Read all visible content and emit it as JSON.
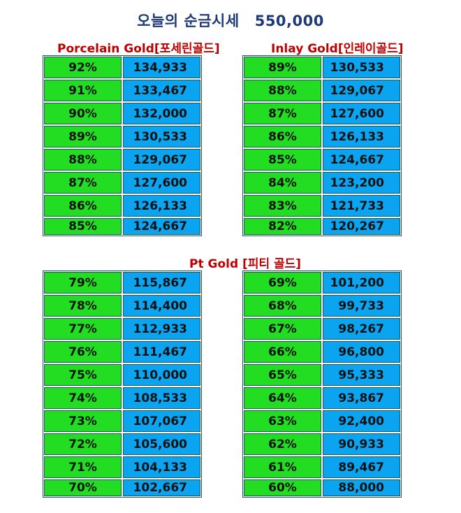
{
  "header": {
    "title": "오늘의 순금시세",
    "price": "550,000"
  },
  "sections": {
    "porcelain": {
      "title": "Porcelain Gold[포세린골드]"
    },
    "inlay": {
      "title": "Inlay Gold[인레이골드]"
    },
    "pt": {
      "title": "Pt Gold [피티 골드]"
    }
  },
  "tables": {
    "porcelain": [
      {
        "pct": "92%",
        "price": "134,933"
      },
      {
        "pct": "91%",
        "price": "133,467"
      },
      {
        "pct": "90%",
        "price": "132,000"
      },
      {
        "pct": "89%",
        "price": "130,533"
      },
      {
        "pct": "88%",
        "price": "129,067"
      },
      {
        "pct": "87%",
        "price": "127,600"
      },
      {
        "pct": "86%",
        "price": "126,133"
      },
      {
        "pct": "85%",
        "price": "124,667"
      }
    ],
    "inlay": [
      {
        "pct": "89%",
        "price": "130,533"
      },
      {
        "pct": "88%",
        "price": "129,067"
      },
      {
        "pct": "87%",
        "price": "127,600"
      },
      {
        "pct": "86%",
        "price": "126,133"
      },
      {
        "pct": "85%",
        "price": "124,667"
      },
      {
        "pct": "84%",
        "price": "123,200"
      },
      {
        "pct": "83%",
        "price": "121,733"
      },
      {
        "pct": "82%",
        "price": "120,267"
      }
    ],
    "pt_left": [
      {
        "pct": "79%",
        "price": "115,867"
      },
      {
        "pct": "78%",
        "price": "114,400"
      },
      {
        "pct": "77%",
        "price": "112,933"
      },
      {
        "pct": "76%",
        "price": "111,467"
      },
      {
        "pct": "75%",
        "price": "110,000"
      },
      {
        "pct": "74%",
        "price": "108,533"
      },
      {
        "pct": "73%",
        "price": "107,067"
      },
      {
        "pct": "72%",
        "price": "105,600"
      },
      {
        "pct": "71%",
        "price": "104,133"
      },
      {
        "pct": "70%",
        "price": "102,667"
      }
    ],
    "pt_right": [
      {
        "pct": "69%",
        "price": "101,200"
      },
      {
        "pct": "68%",
        "price": "99,733"
      },
      {
        "pct": "67%",
        "price": "98,267"
      },
      {
        "pct": "66%",
        "price": "96,800"
      },
      {
        "pct": "65%",
        "price": "95,333"
      },
      {
        "pct": "64%",
        "price": "93,867"
      },
      {
        "pct": "63%",
        "price": "92,400"
      },
      {
        "pct": "62%",
        "price": "90,933"
      },
      {
        "pct": "61%",
        "price": "89,467"
      },
      {
        "pct": "60%",
        "price": "88,000"
      }
    ]
  },
  "colors": {
    "title": "#1f3a78",
    "section_title": "#c00000",
    "pct_cell": "#22dd22",
    "price_cell": "#0aa4f0",
    "border": "#1e5a5a"
  }
}
